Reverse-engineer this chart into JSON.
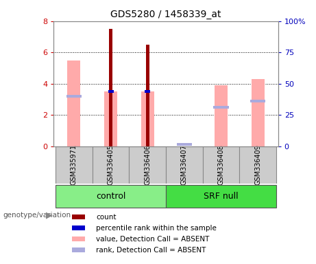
{
  "title": "GDS5280 / 1458339_at",
  "samples": [
    "GSM335971",
    "GSM336405",
    "GSM336406",
    "GSM336407",
    "GSM336408",
    "GSM336409"
  ],
  "ylim_left": [
    0,
    8
  ],
  "ylim_right": [
    0,
    100
  ],
  "yticks_left": [
    0,
    2,
    4,
    6,
    8
  ],
  "yticks_right": [
    0,
    25,
    50,
    75,
    100
  ],
  "ytick_labels_right": [
    "0",
    "25",
    "50",
    "75",
    "100%"
  ],
  "red_bar_heights": [
    0,
    7.5,
    6.5,
    0,
    0,
    0
  ],
  "pink_bar_heights": [
    5.5,
    3.5,
    3.5,
    0,
    3.9,
    4.3
  ],
  "blue_marker_vals": [
    0,
    3.5,
    3.5,
    0,
    0,
    0
  ],
  "light_blue_marker_vals": [
    3.2,
    0,
    0,
    0.12,
    2.5,
    2.9
  ],
  "red_color": "#990000",
  "pink_color": "#FFAAAA",
  "blue_color": "#0000CC",
  "light_blue_color": "#AAAADD",
  "tick_color_left": "#CC0000",
  "tick_color_right": "#0000BB",
  "group_label": "genotype/variation",
  "groups": [
    {
      "name": "control",
      "start": 0,
      "end": 2,
      "color": "#88EE88"
    },
    {
      "name": "SRF null",
      "start": 3,
      "end": 5,
      "color": "#44DD44"
    }
  ],
  "legend_items": [
    {
      "label": "count",
      "color": "#990000"
    },
    {
      "label": "percentile rank within the sample",
      "color": "#0000CC"
    },
    {
      "label": "value, Detection Call = ABSENT",
      "color": "#FFAAAA"
    },
    {
      "label": "rank, Detection Call = ABSENT",
      "color": "#AAAADD"
    }
  ],
  "sample_box_color": "#CCCCCC",
  "plot_bg": "#FFFFFF",
  "fig_bg": "#FFFFFF"
}
